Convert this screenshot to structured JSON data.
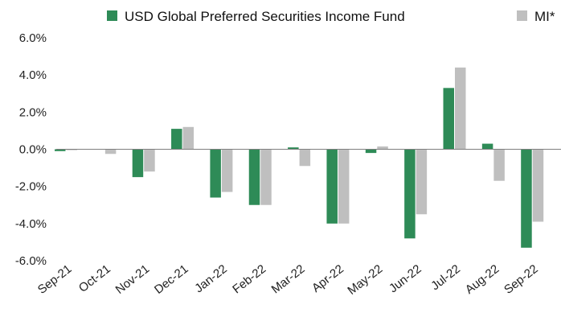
{
  "chart_data": {
    "type": "bar",
    "categories": [
      "Sep-21",
      "Oct-21",
      "Nov-21",
      "Dec-21",
      "Jan-22",
      "Feb-22",
      "Mar-22",
      "Apr-22",
      "May-22",
      "Jun-22",
      "Jul-22",
      "Aug-22",
      "Sep-22"
    ],
    "series": [
      {
        "name": "USD Global Preferred Securities Income Fund",
        "color": "#2e8b57",
        "values": [
          -0.1,
          0.0,
          -1.5,
          1.1,
          -2.6,
          -3.0,
          0.1,
          -4.0,
          -0.2,
          -4.8,
          3.3,
          0.3,
          -5.3
        ]
      },
      {
        "name": "MI*",
        "color": "#bfbfbf",
        "values": [
          -0.05,
          -0.25,
          -1.2,
          1.2,
          -2.3,
          -3.0,
          -0.9,
          -4.0,
          0.15,
          -3.5,
          4.4,
          -1.7,
          -3.9
        ]
      }
    ],
    "ylim": [
      -6.0,
      6.0
    ],
    "yticks": [
      "-6.0%",
      "-4.0%",
      "-2.0%",
      "0.0%",
      "2.0%",
      "4.0%",
      "6.0%"
    ],
    "ytick_values": [
      -6,
      -4,
      -2,
      0,
      2,
      4,
      6
    ],
    "legend_position": "top",
    "grid": false
  }
}
